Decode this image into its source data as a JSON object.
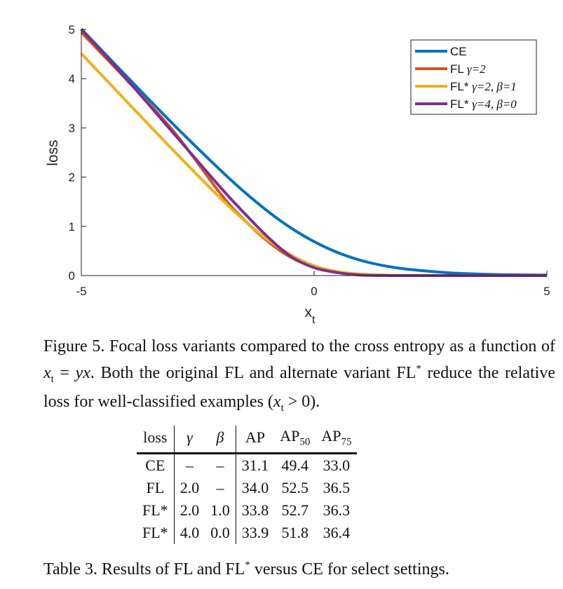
{
  "chart_data": {
    "type": "line",
    "xlabel": "x",
    "xlabel_sub": "t",
    "ylabel": "loss",
    "xlim": [
      -5,
      5
    ],
    "ylim": [
      0,
      5
    ],
    "xticks": [
      "-5",
      "0",
      "5"
    ],
    "yticks": [
      "0",
      "1",
      "2",
      "3",
      "4",
      "5"
    ],
    "legend_position": "top-right",
    "series": [
      {
        "name": "CE",
        "color": "#0072bd",
        "x": [
          -5,
          -4,
          -3,
          -2,
          -1.5,
          -1,
          -0.5,
          0,
          0.5,
          1,
          1.5,
          2,
          3,
          4,
          5
        ],
        "values": [
          5.01,
          4.02,
          3.05,
          2.13,
          1.7,
          1.31,
          0.97,
          0.69,
          0.47,
          0.31,
          0.2,
          0.13,
          0.05,
          0.02,
          0.01
        ]
      },
      {
        "name": "FL γ=2",
        "color": "#d95319",
        "x": [
          -5,
          -4,
          -3,
          -2,
          -1.5,
          -1,
          -0.5,
          0,
          0.5,
          1,
          1.5,
          2,
          3,
          4,
          5
        ],
        "values": [
          4.94,
          3.95,
          2.91,
          1.65,
          1.13,
          0.7,
          0.37,
          0.17,
          0.067,
          0.024,
          0.007,
          0.002,
          0.0001,
          0,
          0
        ]
      },
      {
        "name": "FL* γ=2, β=1",
        "color": "#edb120",
        "x": [
          -5,
          -4,
          -3,
          -2,
          -1.5,
          -1,
          -0.5,
          0,
          0.5,
          1,
          1.5,
          2,
          3,
          4,
          5
        ],
        "values": [
          4.51,
          3.51,
          2.52,
          1.56,
          1.12,
          0.73,
          0.42,
          0.2,
          0.08,
          0.03,
          0.01,
          0.003,
          0.0002,
          0,
          0
        ]
      },
      {
        "name": "FL* γ=4, β=0",
        "color": "#7e2f8e",
        "x": [
          -5,
          -4,
          -3,
          -2,
          -1.5,
          -1,
          -0.5,
          0,
          0.5,
          1,
          1.5,
          2,
          3,
          4,
          5
        ],
        "values": [
          5.0,
          3.96,
          2.87,
          1.78,
          1.27,
          0.79,
          0.39,
          0.16,
          0.06,
          0.01,
          0.002,
          0,
          0,
          0,
          0
        ]
      }
    ],
    "legend": [
      {
        "label": "CE"
      },
      {
        "label_main": "FL ",
        "label_math": "γ=2"
      },
      {
        "label_main": "FL* ",
        "label_math": "γ=2, β=1"
      },
      {
        "label_main": "FL* ",
        "label_math": "γ=4, β=0"
      }
    ]
  },
  "figure_caption": {
    "p1": "Figure 5. Focal loss variants compared to the cross entropy as a function of ",
    "xt": "x",
    "xt_sub": "t",
    "eq": " = ",
    "yx": "yx",
    "p2": ". Both the original FL and alternate variant FL",
    "star": "*",
    "p3": " reduce the relative loss for well-classified examples (",
    "xt2": "x",
    "xt2_sub": "t",
    "gt": " > 0)."
  },
  "table": {
    "headers": {
      "loss": "loss",
      "gamma": "γ",
      "beta": "β",
      "ap": "AP",
      "ap50": "AP",
      "ap50_sub": "50",
      "ap75": "AP",
      "ap75_sub": "75"
    },
    "rows": [
      {
        "loss": "CE",
        "gamma": "–",
        "beta": "–",
        "ap": "31.1",
        "ap50": "49.4",
        "ap75": "33.0"
      },
      {
        "loss": "FL",
        "gamma": "2.0",
        "beta": "–",
        "ap": "34.0",
        "ap50": "52.5",
        "ap75": "36.5"
      },
      {
        "loss": "FL*",
        "gamma": "2.0",
        "beta": "1.0",
        "ap": "33.8",
        "ap50": "52.7",
        "ap75": "36.3"
      },
      {
        "loss": "FL*",
        "gamma": "4.0",
        "beta": "0.0",
        "ap": "33.9",
        "ap50": "51.8",
        "ap75": "36.4"
      }
    ]
  },
  "table_caption": {
    "p1": "Table 3. Results of FL and FL",
    "star1": "*",
    "p2": " versus CE for select settings."
  }
}
